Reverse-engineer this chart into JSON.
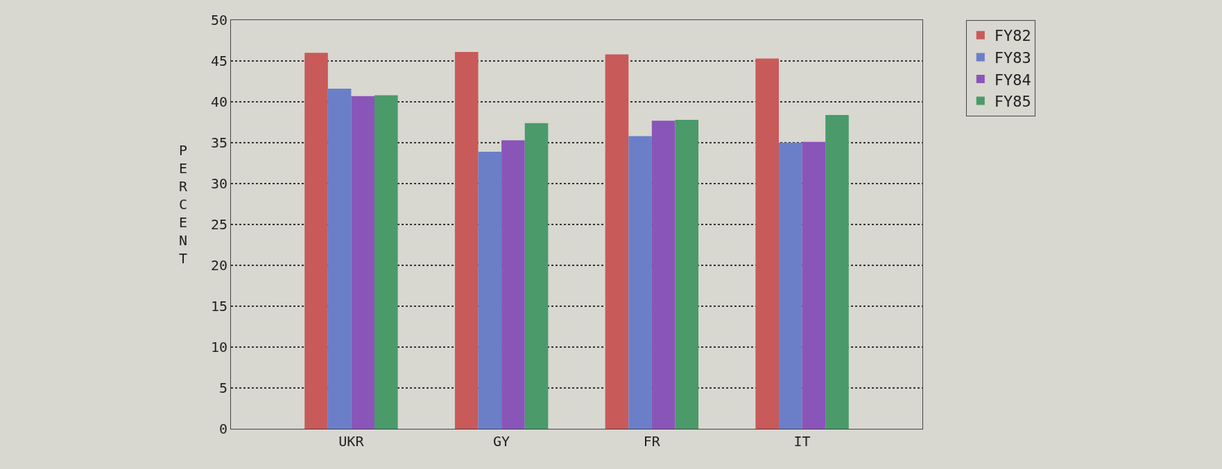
{
  "chart_data": {
    "type": "bar",
    "ylabel": "PERCENT",
    "categories": [
      "UKR",
      "GY",
      "FR",
      "IT"
    ],
    "series": [
      {
        "name": "FY82",
        "color": "#c85a5a",
        "values": [
          46.0,
          46.1,
          45.8,
          45.3
        ]
      },
      {
        "name": "FY83",
        "color": "#6a7fc8",
        "values": [
          41.6,
          33.9,
          35.8,
          35.0
        ]
      },
      {
        "name": "FY84",
        "color": "#8a55b8",
        "values": [
          40.7,
          35.3,
          37.7,
          35.1
        ]
      },
      {
        "name": "FY85",
        "color": "#4a9a6a",
        "values": [
          40.8,
          37.4,
          37.8,
          38.4
        ]
      }
    ],
    "ylim": [
      0,
      50
    ],
    "yticks": [
      0,
      5,
      10,
      15,
      20,
      25,
      30,
      35,
      40,
      45,
      50
    ],
    "grid": "y",
    "legend": "top right"
  }
}
